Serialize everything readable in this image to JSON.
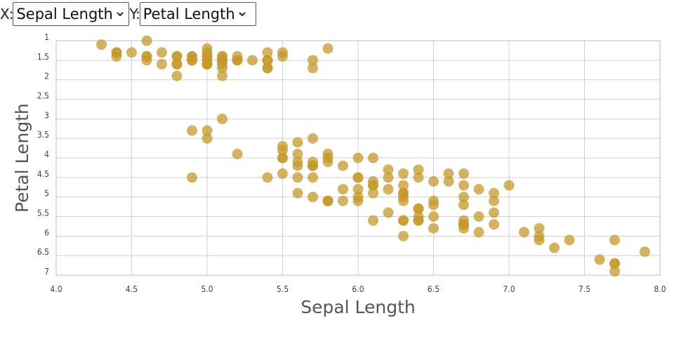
{
  "controls": {
    "x_label": "X:",
    "y_label": "Y:",
    "x_selected": "Sepal Length",
    "y_selected": "Petal Length"
  },
  "colors": {
    "point": "#c49a2c",
    "grid": "#cfcfcf"
  },
  "icons": {
    "dropdown": "chevron-down-icon"
  },
  "chart_data": {
    "type": "scatter",
    "xlabel": "Sepal Length",
    "ylabel": "Petal Length",
    "xlim": [
      4.0,
      8.0
    ],
    "ylim": [
      1,
      7
    ],
    "y_inverted": true,
    "grid": true,
    "x_ticks": [
      "4.0",
      "4.5",
      "5.0",
      "5.5",
      "6.0",
      "6.5",
      "7.0",
      "7.5",
      "8.0"
    ],
    "y_ticks": [
      "1",
      "1.5",
      "2",
      "2.5",
      "3",
      "3.5",
      "4",
      "4.5",
      "5",
      "5.5",
      "6",
      "6.5",
      "7"
    ],
    "series": [
      {
        "points": [
          [
            5.1,
            1.4
          ],
          [
            4.9,
            1.4
          ],
          [
            4.7,
            1.3
          ],
          [
            4.6,
            1.5
          ],
          [
            5.0,
            1.4
          ],
          [
            5.4,
            1.7
          ],
          [
            4.6,
            1.4
          ],
          [
            5.0,
            1.5
          ],
          [
            4.4,
            1.4
          ],
          [
            4.9,
            1.5
          ],
          [
            5.4,
            1.5
          ],
          [
            4.8,
            1.6
          ],
          [
            4.8,
            1.4
          ],
          [
            4.3,
            1.1
          ],
          [
            5.8,
            1.2
          ],
          [
            5.7,
            1.5
          ],
          [
            5.4,
            1.3
          ],
          [
            5.1,
            1.4
          ],
          [
            5.7,
            1.7
          ],
          [
            5.1,
            1.5
          ],
          [
            5.4,
            1.7
          ],
          [
            5.1,
            1.5
          ],
          [
            4.6,
            1.0
          ],
          [
            5.1,
            1.7
          ],
          [
            4.8,
            1.9
          ],
          [
            5.0,
            1.6
          ],
          [
            5.0,
            1.6
          ],
          [
            5.2,
            1.5
          ],
          [
            5.2,
            1.4
          ],
          [
            4.7,
            1.6
          ],
          [
            4.8,
            1.6
          ],
          [
            5.4,
            1.5
          ],
          [
            5.2,
            1.5
          ],
          [
            5.5,
            1.4
          ],
          [
            4.9,
            1.5
          ],
          [
            5.0,
            1.2
          ],
          [
            5.5,
            1.3
          ],
          [
            4.9,
            1.4
          ],
          [
            4.4,
            1.3
          ],
          [
            5.1,
            1.5
          ],
          [
            5.0,
            1.3
          ],
          [
            4.5,
            1.3
          ],
          [
            4.4,
            1.3
          ],
          [
            5.0,
            1.6
          ],
          [
            5.1,
            1.9
          ],
          [
            4.8,
            1.4
          ],
          [
            5.1,
            1.6
          ],
          [
            4.6,
            1.4
          ],
          [
            5.3,
            1.5
          ],
          [
            5.0,
            1.4
          ],
          [
            7.0,
            4.7
          ],
          [
            6.4,
            4.5
          ],
          [
            6.9,
            4.9
          ],
          [
            5.5,
            4.0
          ],
          [
            6.5,
            4.6
          ],
          [
            5.7,
            4.5
          ],
          [
            6.3,
            4.7
          ],
          [
            4.9,
            3.3
          ],
          [
            6.6,
            4.6
          ],
          [
            5.2,
            3.9
          ],
          [
            5.0,
            3.5
          ],
          [
            5.9,
            4.2
          ],
          [
            6.0,
            4.0
          ],
          [
            6.1,
            4.7
          ],
          [
            5.6,
            3.6
          ],
          [
            6.7,
            4.4
          ],
          [
            5.6,
            4.5
          ],
          [
            5.8,
            4.1
          ],
          [
            6.2,
            4.5
          ],
          [
            5.6,
            3.9
          ],
          [
            5.9,
            4.8
          ],
          [
            6.1,
            4.0
          ],
          [
            6.3,
            4.9
          ],
          [
            6.1,
            4.7
          ],
          [
            6.4,
            4.3
          ],
          [
            6.6,
            4.4
          ],
          [
            6.8,
            4.8
          ],
          [
            6.7,
            5.0
          ],
          [
            6.0,
            4.5
          ],
          [
            5.7,
            3.5
          ],
          [
            5.5,
            3.8
          ],
          [
            5.5,
            3.7
          ],
          [
            5.8,
            3.9
          ],
          [
            6.0,
            5.1
          ],
          [
            5.4,
            4.5
          ],
          [
            6.0,
            4.5
          ],
          [
            6.7,
            4.7
          ],
          [
            6.3,
            4.4
          ],
          [
            5.6,
            4.1
          ],
          [
            5.5,
            4.0
          ],
          [
            5.5,
            4.4
          ],
          [
            6.1,
            4.6
          ],
          [
            5.8,
            4.0
          ],
          [
            5.0,
            3.3
          ],
          [
            5.6,
            4.2
          ],
          [
            5.7,
            4.2
          ],
          [
            5.7,
            4.2
          ],
          [
            6.2,
            4.3
          ],
          [
            5.1,
            3.0
          ],
          [
            5.7,
            4.1
          ],
          [
            6.3,
            6.0
          ],
          [
            5.8,
            5.1
          ],
          [
            7.1,
            5.9
          ],
          [
            6.3,
            5.6
          ],
          [
            6.5,
            5.8
          ],
          [
            7.6,
            6.6
          ],
          [
            4.9,
            4.5
          ],
          [
            7.3,
            6.3
          ],
          [
            6.7,
            5.8
          ],
          [
            7.2,
            6.1
          ],
          [
            6.5,
            5.1
          ],
          [
            6.4,
            5.3
          ],
          [
            6.8,
            5.5
          ],
          [
            5.7,
            5.0
          ],
          [
            5.8,
            5.1
          ],
          [
            6.4,
            5.3
          ],
          [
            6.5,
            5.5
          ],
          [
            7.7,
            6.7
          ],
          [
            7.7,
            6.9
          ],
          [
            6.0,
            5.0
          ],
          [
            6.9,
            5.7
          ],
          [
            5.6,
            4.9
          ],
          [
            7.7,
            6.7
          ],
          [
            6.3,
            4.9
          ],
          [
            6.7,
            5.7
          ],
          [
            7.2,
            6.0
          ],
          [
            6.2,
            4.8
          ],
          [
            6.1,
            4.9
          ],
          [
            6.4,
            5.6
          ],
          [
            7.2,
            5.8
          ],
          [
            7.4,
            6.1
          ],
          [
            7.9,
            6.4
          ],
          [
            6.4,
            5.6
          ],
          [
            6.3,
            5.1
          ],
          [
            6.1,
            5.6
          ],
          [
            7.7,
            6.1
          ],
          [
            6.3,
            5.6
          ],
          [
            6.4,
            5.5
          ],
          [
            6.0,
            4.8
          ],
          [
            6.9,
            5.4
          ],
          [
            6.7,
            5.6
          ],
          [
            6.9,
            5.1
          ],
          [
            5.8,
            5.1
          ],
          [
            6.8,
            5.9
          ],
          [
            6.7,
            5.7
          ],
          [
            6.7,
            5.2
          ],
          [
            6.3,
            5.0
          ],
          [
            6.5,
            5.2
          ],
          [
            6.2,
            5.4
          ],
          [
            5.9,
            5.1
          ]
        ]
      }
    ]
  }
}
